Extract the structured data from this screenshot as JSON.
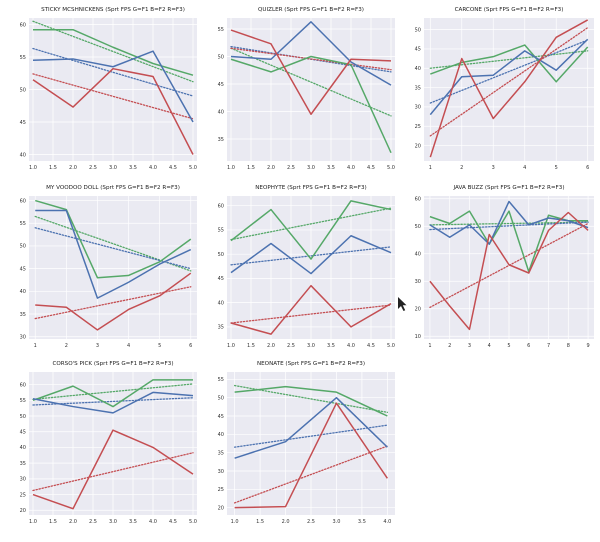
{
  "colors": {
    "G": "#55a868",
    "B": "#4c72b0",
    "R": "#c44e52",
    "background": "#eaeaf2",
    "grid": "#ffffff"
  },
  "chart_data": [
    {
      "type": "line",
      "title": "STICKY MCSHNICKENS (Sprt FPS G=F1 B=F2 R=F3)",
      "x": [
        1.0,
        2.0,
        3.0,
        4.0,
        5.0
      ],
      "xticks": [
        "1.0",
        "1.5",
        "2.0",
        "2.5",
        "3.0",
        "3.5",
        "4.0",
        "4.5",
        "5.0"
      ],
      "xlim": [
        0.9,
        5.1
      ],
      "yticks": [
        "40",
        "45",
        "50",
        "55",
        "60"
      ],
      "ylim": [
        39,
        61
      ],
      "grid": true,
      "series": [
        {
          "key": "G",
          "values": [
            59.2,
            59.2,
            56.5,
            54.0,
            52.2
          ],
          "trend": [
            60.5,
            51.2
          ]
        },
        {
          "key": "B",
          "values": [
            54.5,
            54.7,
            53.5,
            55.9,
            45.0
          ],
          "trend": [
            56.3,
            49.0
          ]
        },
        {
          "key": "R",
          "values": [
            51.5,
            47.3,
            53.2,
            52.0,
            40.0
          ],
          "trend": [
            52.4,
            45.5
          ]
        }
      ]
    },
    {
      "type": "line",
      "title": "QUIZLER (Sprt FPS G=F1 B=F2 R=F3)",
      "x": [
        1.0,
        2.0,
        3.0,
        4.0,
        5.0
      ],
      "xticks": [
        "1.0",
        "1.5",
        "2.0",
        "2.5",
        "3.0",
        "3.5",
        "4.0",
        "4.5",
        "5.0"
      ],
      "xlim": [
        0.9,
        5.1
      ],
      "yticks": [
        "35",
        "40",
        "45",
        "50",
        "55"
      ],
      "ylim": [
        31,
        57
      ],
      "grid": true,
      "series": [
        {
          "key": "G",
          "values": [
            49.5,
            47.2,
            50.0,
            48.5,
            32.5
          ],
          "trend": [
            51.5,
            39.2
          ]
        },
        {
          "key": "B",
          "values": [
            50.0,
            49.5,
            56.3,
            49.0,
            44.8
          ],
          "trend": [
            51.8,
            47.2
          ]
        },
        {
          "key": "R",
          "values": [
            54.8,
            52.3,
            39.5,
            49.5,
            49.2
          ],
          "trend": [
            51.5,
            47.6
          ]
        }
      ]
    },
    {
      "type": "line",
      "title": "CARCONE (Sprt FPS G=F1 B=F2 R=F3)",
      "x": [
        1,
        2,
        3,
        4,
        5,
        6
      ],
      "xticks": [
        "1",
        "2",
        "3",
        "4",
        "5",
        "6"
      ],
      "xlim": [
        0.8,
        6.2
      ],
      "yticks": [
        "20",
        "25",
        "30",
        "35",
        "40",
        "45",
        "50"
      ],
      "ylim": [
        16,
        53
      ],
      "grid": true,
      "series": [
        {
          "key": "G",
          "values": [
            38.5,
            41.5,
            43.0,
            46.0,
            36.5,
            45.5
          ],
          "trend": [
            40.0,
            44.5
          ]
        },
        {
          "key": "B",
          "values": [
            28.0,
            37.8,
            38.2,
            44.5,
            39.5,
            47.5
          ],
          "trend": [
            31.0,
            47.3
          ]
        },
        {
          "key": "R",
          "values": [
            17.0,
            42.5,
            27.0,
            36.5,
            48.0,
            52.5
          ],
          "trend": [
            22.5,
            50.5
          ]
        }
      ]
    },
    {
      "type": "line",
      "title": "MY VOODOO DOLL (Sprt FPS G=F1 B=F2 R=F3)",
      "x": [
        1,
        2,
        3,
        4,
        5,
        6
      ],
      "xticks": [
        "1",
        "2",
        "3",
        "4",
        "5",
        "6"
      ],
      "xlim": [
        0.8,
        6.2
      ],
      "yticks": [
        "30",
        "35",
        "40",
        "45",
        "50",
        "55",
        "60"
      ],
      "ylim": [
        29.5,
        61
      ],
      "grid": true,
      "series": [
        {
          "key": "G",
          "values": [
            60.0,
            58.0,
            43.0,
            43.5,
            46.5,
            51.5
          ],
          "trend": [
            56.5,
            44.5
          ]
        },
        {
          "key": "B",
          "values": [
            57.8,
            57.8,
            38.5,
            42.0,
            46.0,
            49.2
          ],
          "trend": [
            54.0,
            45.0
          ]
        },
        {
          "key": "R",
          "values": [
            37.0,
            36.5,
            31.5,
            36.0,
            39.0,
            44.0
          ],
          "trend": [
            34.0,
            41.0
          ]
        }
      ]
    },
    {
      "type": "line",
      "title": "NEOPHYTE (Sprt FPS G=F1 B=F2 R=F3)",
      "x": [
        1.0,
        2.0,
        3.0,
        4.0,
        5.0
      ],
      "xticks": [
        "1.0",
        "1.5",
        "2.0",
        "2.5",
        "3.0",
        "3.5",
        "4.0",
        "4.5",
        "5.0"
      ],
      "xlim": [
        0.9,
        5.1
      ],
      "yticks": [
        "35",
        "40",
        "45",
        "50",
        "55",
        "60"
      ],
      "ylim": [
        32.5,
        62
      ],
      "grid": true,
      "series": [
        {
          "key": "G",
          "values": [
            52.8,
            59.2,
            49.0,
            61.0,
            59.2
          ],
          "trend": [
            53.0,
            59.5
          ]
        },
        {
          "key": "B",
          "values": [
            46.2,
            52.2,
            46.0,
            53.8,
            50.3
          ],
          "trend": [
            47.8,
            51.5
          ]
        },
        {
          "key": "R",
          "values": [
            35.8,
            33.5,
            43.5,
            35.0,
            39.8
          ],
          "trend": [
            35.8,
            39.5
          ]
        }
      ]
    },
    {
      "type": "line",
      "title": "JAVA BUZZ (Sprt FPS G=F1 B=F2 R=F3)",
      "x": [
        1,
        2,
        3,
        4,
        5,
        6,
        7,
        8,
        9
      ],
      "xticks": [
        "1",
        "2",
        "3",
        "4",
        "5",
        "6",
        "7",
        "8",
        "9"
      ],
      "xlim": [
        0.7,
        9.3
      ],
      "yticks": [
        "10",
        "20",
        "30",
        "40",
        "50",
        "60"
      ],
      "ylim": [
        9,
        61
      ],
      "grid": true,
      "series": [
        {
          "key": "G",
          "values": [
            53.5,
            51.0,
            55.5,
            43.5,
            55.5,
            33.5,
            54.0,
            52.0,
            52.0
          ],
          "trend": [
            50.5,
            51.5
          ]
        },
        {
          "key": "B",
          "values": [
            50.5,
            46.0,
            50.5,
            43.5,
            59.0,
            50.5,
            53.0,
            52.0,
            49.5
          ],
          "trend": [
            48.8,
            51.5
          ]
        },
        {
          "key": "R",
          "values": [
            30.0,
            21.0,
            12.5,
            47.0,
            36.0,
            33.0,
            48.5,
            55.0,
            48.5
          ],
          "trend": [
            20.5,
            51.0
          ]
        }
      ]
    },
    {
      "type": "line",
      "title": "CORSO'S PICK (Sprt FPS G=F1 B=F2 R=F3)",
      "x": [
        1.0,
        2.0,
        3.0,
        4.0,
        5.0
      ],
      "xticks": [
        "1.0",
        "1.5",
        "2.0",
        "2.5",
        "3.0",
        "3.5",
        "4.0",
        "4.5",
        "5.0"
      ],
      "xlim": [
        0.9,
        5.1
      ],
      "yticks": [
        "20",
        "25",
        "30",
        "35",
        "40",
        "45",
        "50",
        "55",
        "60"
      ],
      "ylim": [
        18.5,
        64
      ],
      "grid": true,
      "series": [
        {
          "key": "G",
          "values": [
            55.0,
            59.5,
            53.0,
            61.5,
            61.5
          ],
          "trend": [
            55.3,
            60.2
          ]
        },
        {
          "key": "B",
          "values": [
            55.5,
            53.0,
            51.0,
            57.5,
            56.5
          ],
          "trend": [
            53.5,
            55.8
          ]
        },
        {
          "key": "R",
          "values": [
            25.0,
            20.5,
            45.5,
            40.0,
            31.5
          ],
          "trend": [
            26.3,
            38.3
          ]
        }
      ]
    },
    {
      "type": "line",
      "title": "NEONATE (Sprt FPS G=F1 B=F2 R=F3)",
      "x": [
        1.0,
        2.0,
        3.0,
        4.0
      ],
      "xticks": [
        "1.0",
        "1.5",
        "2.0",
        "2.5",
        "3.0",
        "3.5",
        "4.0"
      ],
      "xlim": [
        0.85,
        4.15
      ],
      "yticks": [
        "20",
        "25",
        "30",
        "35",
        "40",
        "45",
        "50",
        "55"
      ],
      "ylim": [
        18,
        57
      ],
      "grid": true,
      "series": [
        {
          "key": "G",
          "values": [
            51.5,
            53.0,
            51.5,
            45.0
          ],
          "trend": [
            53.3,
            46.0
          ]
        },
        {
          "key": "B",
          "values": [
            33.5,
            38.0,
            50.0,
            36.5
          ],
          "trend": [
            36.5,
            42.5
          ]
        },
        {
          "key": "R",
          "values": [
            20.0,
            20.3,
            48.5,
            28.0
          ],
          "trend": [
            21.3,
            36.8
          ]
        }
      ]
    }
  ]
}
